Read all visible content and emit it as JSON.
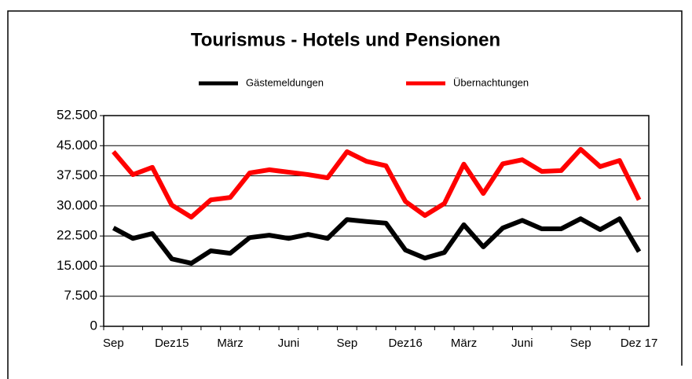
{
  "chart_data": {
    "type": "line",
    "title": "Tourismus - Hotels und Pensionen",
    "categories": [
      "Sep",
      null,
      null,
      "Dez15",
      null,
      null,
      "März",
      null,
      null,
      "Juni",
      null,
      null,
      "Sep",
      null,
      null,
      "Dez16",
      null,
      null,
      "März",
      null,
      null,
      "Juni",
      null,
      null,
      "Sep",
      null,
      null,
      "Dez 17"
    ],
    "series": [
      {
        "name": "Gästemeldungen",
        "color": "#000000",
        "values": [
          24500,
          21900,
          23100,
          16800,
          15700,
          18800,
          18200,
          22100,
          22700,
          21900,
          22900,
          21900,
          26600,
          26100,
          25700,
          19000,
          17000,
          18400,
          25300,
          19800,
          24500,
          26400,
          24300,
          24300,
          26800,
          24100,
          26800,
          18600
        ]
      },
      {
        "name": "Übernachtungen",
        "color": "#ff0000",
        "values": [
          43500,
          37800,
          39600,
          30200,
          27200,
          31500,
          32100,
          38200,
          39000,
          38400,
          37800,
          37000,
          43500,
          41100,
          40000,
          31100,
          27600,
          30600,
          40400,
          33100,
          40500,
          41500,
          38600,
          38800,
          44100,
          39800,
          41300,
          31500
        ]
      }
    ],
    "ylim": [
      0,
      52500
    ],
    "yticks": [
      0,
      {
        "value": 7500,
        "label": "7.500"
      },
      {
        "value": 15000,
        "label": "15.000"
      },
      {
        "value": 22500,
        "label": "22.500"
      },
      {
        "value": 30000,
        "label": "30.000"
      },
      {
        "value": 37500,
        "label": "37.500"
      },
      {
        "value": 45000,
        "label": "45.000"
      },
      {
        "value": 52500,
        "label": "52.500"
      }
    ],
    "grid": true,
    "legend": "top"
  }
}
